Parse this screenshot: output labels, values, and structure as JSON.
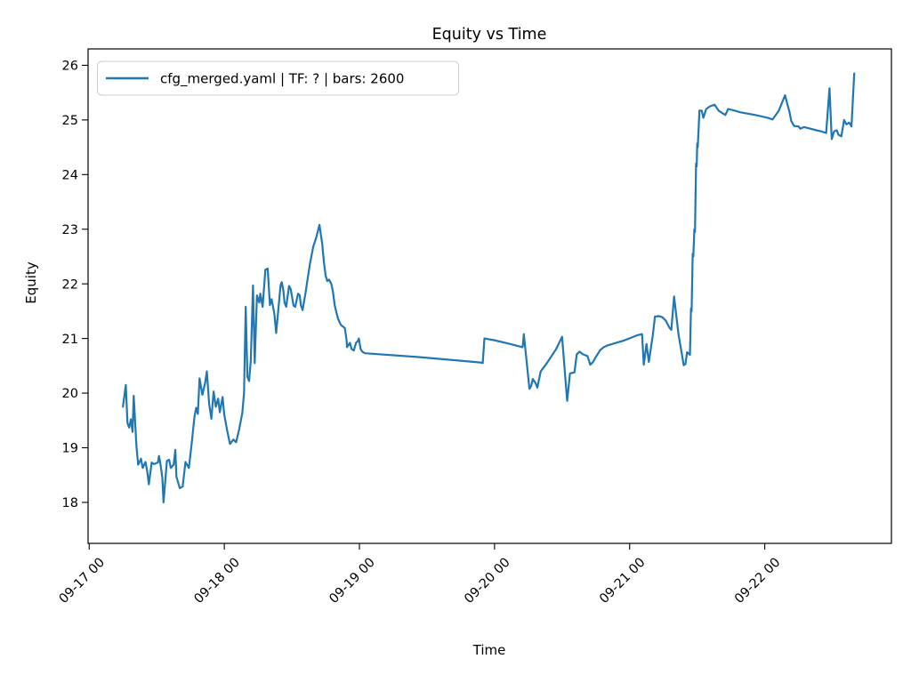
{
  "title": "Equity vs Time",
  "xlabel": "Time",
  "ylabel": "Equity",
  "legend": {
    "label": "cfg_merged.yaml | TF: ? | bars: 2600",
    "position": "upper left"
  },
  "colors": {
    "line": "#1f77b4",
    "spine": "#000000",
    "text": "#000000",
    "legend_border": "#cccccc",
    "background": "#ffffff"
  },
  "chart_data": {
    "type": "line",
    "title": "Equity vs Time",
    "xlabel": "Time",
    "ylabel": "Equity",
    "grid": false,
    "legend_position": "upper left",
    "x_unit": "hours since 09-17 00:00",
    "xlim_hours": [
      -0.2,
      142.5
    ],
    "ylim": [
      17.25,
      26.3
    ],
    "y_ticks": [
      18,
      19,
      20,
      21,
      22,
      23,
      24,
      25,
      26
    ],
    "x_ticks": [
      {
        "t": 0,
        "label": "09-17 00"
      },
      {
        "t": 24,
        "label": "09-18 00"
      },
      {
        "t": 48,
        "label": "09-19 00"
      },
      {
        "t": 72,
        "label": "09-20 00"
      },
      {
        "t": 96,
        "label": "09-21 00"
      },
      {
        "t": 120,
        "label": "09-22 00"
      }
    ],
    "series": [
      {
        "name": "cfg_merged.yaml | TF: ? | bars: 2600",
        "color": "#1f77b4",
        "points": [
          [
            6.0,
            19.75
          ],
          [
            6.5,
            20.15
          ],
          [
            6.8,
            19.45
          ],
          [
            7.1,
            19.37
          ],
          [
            7.4,
            19.52
          ],
          [
            7.7,
            19.29
          ],
          [
            7.9,
            19.95
          ],
          [
            8.4,
            19.02
          ],
          [
            8.7,
            18.69
          ],
          [
            9.2,
            18.8
          ],
          [
            9.5,
            18.63
          ],
          [
            10.0,
            18.74
          ],
          [
            10.3,
            18.58
          ],
          [
            10.6,
            18.33
          ],
          [
            11.1,
            18.73
          ],
          [
            11.5,
            18.7
          ],
          [
            12.2,
            18.73
          ],
          [
            12.4,
            18.85
          ],
          [
            12.6,
            18.74
          ],
          [
            13.0,
            18.45
          ],
          [
            13.2,
            18.0
          ],
          [
            13.8,
            18.76
          ],
          [
            14.2,
            18.78
          ],
          [
            14.5,
            18.63
          ],
          [
            15.0,
            18.69
          ],
          [
            15.3,
            18.96
          ],
          [
            15.5,
            18.47
          ],
          [
            16.1,
            18.26
          ],
          [
            16.6,
            18.29
          ],
          [
            17.1,
            18.74
          ],
          [
            17.7,
            18.63
          ],
          [
            18.2,
            19.07
          ],
          [
            18.7,
            19.57
          ],
          [
            19.0,
            19.73
          ],
          [
            19.3,
            19.62
          ],
          [
            19.6,
            20.27
          ],
          [
            20.1,
            19.97
          ],
          [
            20.6,
            20.19
          ],
          [
            20.9,
            20.4
          ],
          [
            21.3,
            19.8
          ],
          [
            21.7,
            19.53
          ],
          [
            22.1,
            20.03
          ],
          [
            22.5,
            19.75
          ],
          [
            22.9,
            19.9
          ],
          [
            23.2,
            19.65
          ],
          [
            23.7,
            19.93
          ],
          [
            24.0,
            19.6
          ],
          [
            24.5,
            19.32
          ],
          [
            25.0,
            19.07
          ],
          [
            25.6,
            19.15
          ],
          [
            26.1,
            19.1
          ],
          [
            26.6,
            19.32
          ],
          [
            27.2,
            19.64
          ],
          [
            27.5,
            20.0
          ],
          [
            27.8,
            21.58
          ],
          [
            28.1,
            20.3
          ],
          [
            28.4,
            20.22
          ],
          [
            28.7,
            20.6
          ],
          [
            29.1,
            21.97
          ],
          [
            29.4,
            20.55
          ],
          [
            29.8,
            21.79
          ],
          [
            30.2,
            21.66
          ],
          [
            30.4,
            21.82
          ],
          [
            30.8,
            21.58
          ],
          [
            31.3,
            22.26
          ],
          [
            31.7,
            22.28
          ],
          [
            32.1,
            21.61
          ],
          [
            32.4,
            21.72
          ],
          [
            32.9,
            21.44
          ],
          [
            33.2,
            21.1
          ],
          [
            34.0,
            21.98
          ],
          [
            34.2,
            22.03
          ],
          [
            34.5,
            21.87
          ],
          [
            34.7,
            21.66
          ],
          [
            35.0,
            21.58
          ],
          [
            35.5,
            21.96
          ],
          [
            35.8,
            21.9
          ],
          [
            36.3,
            21.6
          ],
          [
            36.6,
            21.58
          ],
          [
            37.1,
            21.82
          ],
          [
            37.4,
            21.79
          ],
          [
            37.6,
            21.61
          ],
          [
            37.9,
            21.52
          ],
          [
            38.4,
            21.82
          ],
          [
            38.7,
            22.03
          ],
          [
            39.0,
            22.23
          ],
          [
            39.2,
            22.36
          ],
          [
            39.8,
            22.68
          ],
          [
            40.3,
            22.84
          ],
          [
            40.9,
            23.08
          ],
          [
            41.4,
            22.73
          ],
          [
            41.7,
            22.4
          ],
          [
            42.0,
            22.15
          ],
          [
            42.3,
            22.05
          ],
          [
            42.6,
            22.08
          ],
          [
            43.0,
            22.0
          ],
          [
            43.3,
            21.85
          ],
          [
            43.6,
            21.61
          ],
          [
            43.9,
            21.48
          ],
          [
            44.2,
            21.36
          ],
          [
            44.7,
            21.25
          ],
          [
            45.4,
            21.19
          ],
          [
            45.7,
            20.98
          ],
          [
            45.8,
            20.84
          ],
          [
            46.3,
            20.92
          ],
          [
            46.6,
            20.81
          ],
          [
            47.0,
            20.78
          ],
          [
            47.4,
            20.92
          ],
          [
            47.7,
            20.95
          ],
          [
            47.9,
            21.0
          ],
          [
            48.2,
            20.81
          ],
          [
            48.5,
            20.76
          ],
          [
            49.0,
            20.73
          ],
          [
            58.5,
            20.66
          ],
          [
            69.5,
            20.56
          ],
          [
            69.9,
            20.55
          ],
          [
            70.2,
            21.0
          ],
          [
            71.9,
            20.97
          ],
          [
            74.3,
            20.91
          ],
          [
            77.0,
            20.84
          ],
          [
            77.2,
            21.08
          ],
          [
            78.2,
            20.08
          ],
          [
            78.5,
            20.13
          ],
          [
            78.8,
            20.26
          ],
          [
            79.3,
            20.18
          ],
          [
            79.6,
            20.1
          ],
          [
            80.2,
            20.4
          ],
          [
            81.3,
            20.55
          ],
          [
            82.9,
            20.8
          ],
          [
            84.0,
            21.03
          ],
          [
            84.9,
            19.86
          ],
          [
            85.4,
            20.36
          ],
          [
            86.2,
            20.38
          ],
          [
            86.6,
            20.71
          ],
          [
            87.1,
            20.76
          ],
          [
            87.7,
            20.71
          ],
          [
            88.5,
            20.68
          ],
          [
            89.0,
            20.52
          ],
          [
            89.5,
            20.57
          ],
          [
            90.1,
            20.68
          ],
          [
            90.8,
            20.79
          ],
          [
            91.4,
            20.84
          ],
          [
            92.0,
            20.87
          ],
          [
            93.3,
            20.91
          ],
          [
            94.9,
            20.96
          ],
          [
            96.4,
            21.02
          ],
          [
            97.4,
            21.06
          ],
          [
            98.2,
            21.08
          ],
          [
            98.5,
            20.52
          ],
          [
            99.0,
            20.9
          ],
          [
            99.4,
            20.57
          ],
          [
            100.1,
            21.05
          ],
          [
            100.5,
            21.4
          ],
          [
            101.2,
            21.41
          ],
          [
            101.8,
            21.39
          ],
          [
            102.4,
            21.33
          ],
          [
            103.1,
            21.19
          ],
          [
            103.4,
            21.16
          ],
          [
            103.9,
            21.77
          ],
          [
            104.3,
            21.4
          ],
          [
            104.7,
            21.06
          ],
          [
            105.3,
            20.7
          ],
          [
            105.6,
            20.51
          ],
          [
            105.9,
            20.53
          ],
          [
            106.2,
            20.75
          ],
          [
            106.7,
            20.7
          ],
          [
            106.9,
            21.55
          ],
          [
            107.0,
            21.5
          ],
          [
            107.2,
            22.55
          ],
          [
            107.3,
            22.5
          ],
          [
            107.5,
            23.0
          ],
          [
            107.6,
            22.95
          ],
          [
            107.8,
            24.2
          ],
          [
            107.9,
            24.15
          ],
          [
            108.0,
            24.57
          ],
          [
            108.1,
            24.5
          ],
          [
            108.4,
            25.17
          ],
          [
            108.8,
            25.17
          ],
          [
            109.1,
            25.04
          ],
          [
            109.6,
            25.2
          ],
          [
            110.3,
            25.25
          ],
          [
            111.1,
            25.28
          ],
          [
            111.8,
            25.17
          ],
          [
            113.0,
            25.09
          ],
          [
            113.5,
            25.2
          ],
          [
            114.3,
            25.18
          ],
          [
            115.7,
            25.14
          ],
          [
            118.3,
            25.09
          ],
          [
            120.5,
            25.04
          ],
          [
            121.4,
            25.01
          ],
          [
            122.5,
            25.17
          ],
          [
            123.6,
            25.45
          ],
          [
            124.4,
            25.14
          ],
          [
            124.7,
            24.98
          ],
          [
            125.2,
            24.89
          ],
          [
            126.0,
            24.88
          ],
          [
            126.3,
            24.84
          ],
          [
            127.0,
            24.87
          ],
          [
            128.1,
            24.84
          ],
          [
            129.2,
            24.81
          ],
          [
            130.1,
            24.79
          ],
          [
            130.9,
            24.76
          ],
          [
            131.5,
            25.58
          ],
          [
            131.9,
            24.65
          ],
          [
            132.3,
            24.79
          ],
          [
            132.8,
            24.81
          ],
          [
            133.1,
            24.73
          ],
          [
            133.6,
            24.7
          ],
          [
            134.1,
            25.0
          ],
          [
            134.5,
            24.92
          ],
          [
            135.0,
            24.95
          ],
          [
            135.4,
            24.88
          ],
          [
            135.9,
            25.85
          ]
        ]
      }
    ]
  }
}
